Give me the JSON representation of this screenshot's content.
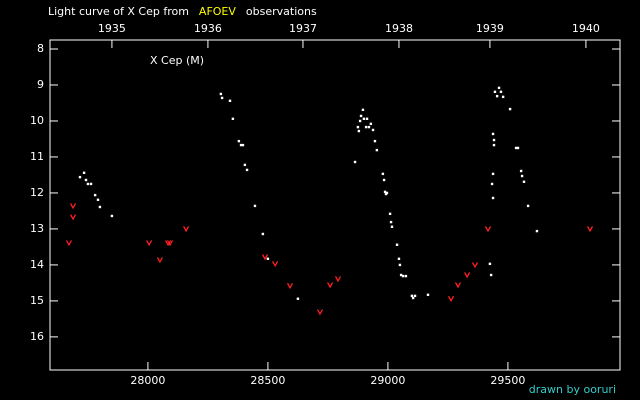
{
  "chart_data": {
    "type": "scatter",
    "title": [
      {
        "text": "Light curve of X Cep from",
        "color": "#ffffff"
      },
      {
        "text": "AFOEV",
        "color": "#ffff00"
      },
      {
        "text": "observations",
        "color": "#ffffff"
      }
    ],
    "annotation": "X Cep (M)",
    "credit": {
      "text": "drawn by ooruri",
      "color": "#33cccc"
    },
    "xlim": [
      27592,
      29967
    ],
    "ylim": [
      7.75,
      16.92
    ],
    "invert_y": true,
    "xticks": [
      28000,
      28500,
      29000,
      29500
    ],
    "yticks": [
      8,
      9,
      10,
      11,
      12,
      13,
      14,
      15,
      16
    ],
    "top_xticks": [
      {
        "value": 27850,
        "label": "1935"
      },
      {
        "value": 28250,
        "label": "1936"
      },
      {
        "value": 28646,
        "label": "1937"
      },
      {
        "value": 29046,
        "label": "1938"
      },
      {
        "value": 29425,
        "label": "1939"
      },
      {
        "value": 29825,
        "label": "1940"
      }
    ],
    "series": [
      {
        "color": "#ffffff",
        "marker": "dot",
        "x": [
          27717,
          27734,
          27742,
          27750,
          27763,
          27780,
          27792,
          27800,
          27850,
          28304,
          28309,
          28342,
          28354,
          28379,
          28388,
          28396,
          28404,
          28413,
          28446,
          28479,
          28500,
          28625,
          28863,
          28875,
          28879,
          28884,
          28888,
          28896,
          28900,
          28909,
          28913,
          28921,
          28929,
          28938,
          28946,
          28954,
          28979,
          28984,
          28988,
          28992,
          28996,
          29009,
          29013,
          29017,
          29038,
          29046,
          29050,
          29055,
          29063,
          29075,
          29100,
          29105,
          29113,
          29167,
          29425,
          29430,
          29434,
          29438,
          29438,
          29438,
          29442,
          29442,
          29446,
          29455,
          29463,
          29471,
          29480,
          29509,
          29534,
          29542,
          29555,
          29559,
          29567,
          29584,
          29621
        ],
        "values": [
          11.56,
          11.44,
          11.64,
          11.75,
          11.75,
          12.06,
          12.19,
          12.39,
          12.64,
          9.25,
          9.36,
          9.44,
          9.94,
          10.56,
          10.67,
          10.67,
          11.22,
          11.36,
          12.36,
          13.14,
          13.83,
          14.94,
          11.14,
          10.17,
          10.28,
          10.0,
          9.86,
          9.69,
          9.94,
          10.17,
          9.94,
          10.17,
          10.08,
          10.25,
          10.56,
          10.81,
          11.47,
          11.64,
          11.97,
          12.03,
          12.0,
          12.58,
          12.81,
          12.94,
          13.44,
          13.83,
          14.0,
          14.28,
          14.31,
          14.31,
          14.86,
          14.92,
          14.86,
          14.83,
          13.97,
          14.28,
          11.75,
          11.47,
          12.14,
          10.36,
          10.53,
          10.67,
          9.19,
          9.31,
          9.08,
          9.19,
          9.33,
          9.67,
          10.75,
          10.75,
          11.39,
          11.53,
          11.69,
          12.36,
          13.06
        ]
      },
      {
        "color": "#ff2020",
        "marker": "v",
        "x": [
          27671,
          27688,
          27688,
          28005,
          28050,
          28084,
          28092,
          28159,
          28488,
          28530,
          28592,
          28717,
          28759,
          28792,
          29263,
          29292,
          29330,
          29363,
          29417,
          29842
        ],
        "values": [
          13.39,
          12.67,
          12.36,
          13.39,
          13.86,
          13.39,
          13.39,
          13.0,
          13.78,
          13.97,
          14.58,
          15.31,
          14.56,
          14.39,
          14.94,
          14.56,
          14.28,
          14.0,
          13.0,
          13.0
        ]
      }
    ]
  }
}
